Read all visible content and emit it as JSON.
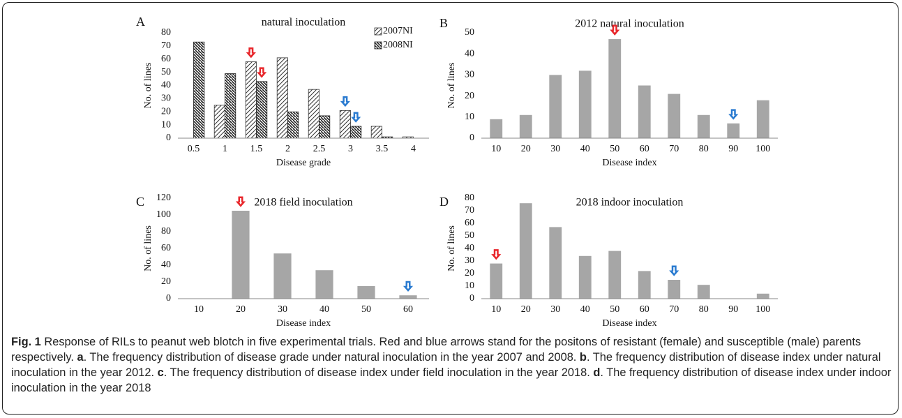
{
  "chart_data": [
    {
      "type": "bar",
      "panel": "A",
      "title": "natural inoculation",
      "x_label": "Disease grade",
      "y_label": "No. of lines",
      "categories": [
        "0.5",
        "1",
        "1.5",
        "2",
        "2.5",
        "3",
        "3.5",
        "4"
      ],
      "series": [
        {
          "name": "2007NI",
          "color": "#333333",
          "pattern": "hatch-right",
          "values": [
            0,
            25,
            58,
            61,
            37,
            21,
            9,
            1
          ]
        },
        {
          "name": "2008NI",
          "color": "#222222",
          "pattern": "hatch-left",
          "values": [
            73,
            49,
            43,
            20,
            17,
            9,
            1,
            0
          ]
        }
      ],
      "ylim": [
        0,
        80
      ],
      "yticks": [
        0,
        10,
        20,
        30,
        40,
        50,
        60,
        70,
        80
      ],
      "grid": false,
      "legend": "top-right",
      "arrows": [
        {
          "series": "2007NI",
          "category": "1.5",
          "color": "#e8262b"
        },
        {
          "series": "2008NI",
          "category": "1.5",
          "color": "#e8262b"
        },
        {
          "series": "2007NI",
          "category": "3",
          "color": "#2a7bd0"
        },
        {
          "series": "2008NI",
          "category": "3",
          "color": "#2a7bd0"
        }
      ]
    },
    {
      "type": "bar",
      "panel": "B",
      "title": "2012 natural inoculation",
      "x_label": "Disease index",
      "y_label": "No. of lines",
      "categories": [
        "10",
        "20",
        "30",
        "40",
        "50",
        "60",
        "70",
        "80",
        "90",
        "100"
      ],
      "values": [
        9,
        11,
        30,
        32,
        47,
        25,
        21,
        11,
        7,
        18
      ],
      "color": "#a6a6a6",
      "ylim": [
        0,
        50
      ],
      "yticks": [
        0,
        10,
        20,
        30,
        40,
        50
      ],
      "grid": false,
      "arrows": [
        {
          "category": "50",
          "color": "#e8262b"
        },
        {
          "category": "90",
          "color": "#2a7bd0"
        }
      ]
    },
    {
      "type": "bar",
      "panel": "C",
      "title": "2018 field inoculation",
      "x_label": "Disease index",
      "y_label": "No. of lines",
      "categories": [
        "10",
        "20",
        "30",
        "40",
        "50",
        "60"
      ],
      "values": [
        0,
        105,
        54,
        34,
        15,
        4
      ],
      "color": "#a6a6a6",
      "ylim": [
        0,
        120
      ],
      "yticks": [
        0,
        20,
        40,
        60,
        80,
        100,
        120
      ],
      "grid": false,
      "arrows": [
        {
          "category": "20",
          "color": "#e8262b"
        },
        {
          "category": "60",
          "color": "#2a7bd0"
        }
      ]
    },
    {
      "type": "bar",
      "panel": "D",
      "title": "2018 indoor inoculation",
      "x_label": "Disease index",
      "y_label": "No. of lines",
      "categories": [
        "10",
        "20",
        "30",
        "40",
        "50",
        "60",
        "70",
        "80",
        "90",
        "100"
      ],
      "values": [
        28,
        76,
        57,
        34,
        38,
        22,
        15,
        11,
        0,
        4
      ],
      "color": "#a6a6a6",
      "ylim": [
        0,
        80
      ],
      "yticks": [
        0,
        10,
        20,
        30,
        40,
        50,
        60,
        70,
        80
      ],
      "grid": false,
      "arrows": [
        {
          "category": "10",
          "color": "#e8262b"
        },
        {
          "category": "70",
          "color": "#2a7bd0"
        }
      ]
    }
  ],
  "caption": {
    "label": "Fig. 1",
    "text": " Response of RILs to peanut web blotch in five experimental trials. Red and blue arrows stand for the positons of resistant (female) and susceptible (male) parents respectively. ",
    "parts": [
      {
        "letter": "a",
        "text": ". The frequency distribution of disease grade under natural inoculation in the year 2007 and 2008. "
      },
      {
        "letter": "b",
        "text": ". The frequency distribution of disease index under natural inoculation in the year 2012. "
      },
      {
        "letter": "c",
        "text": ". The frequency distribution of disease index under field inoculation in the year 2018. "
      },
      {
        "letter": "d",
        "text": ". The frequency distribution of disease index under indoor inoculation in the year 2018"
      }
    ]
  }
}
